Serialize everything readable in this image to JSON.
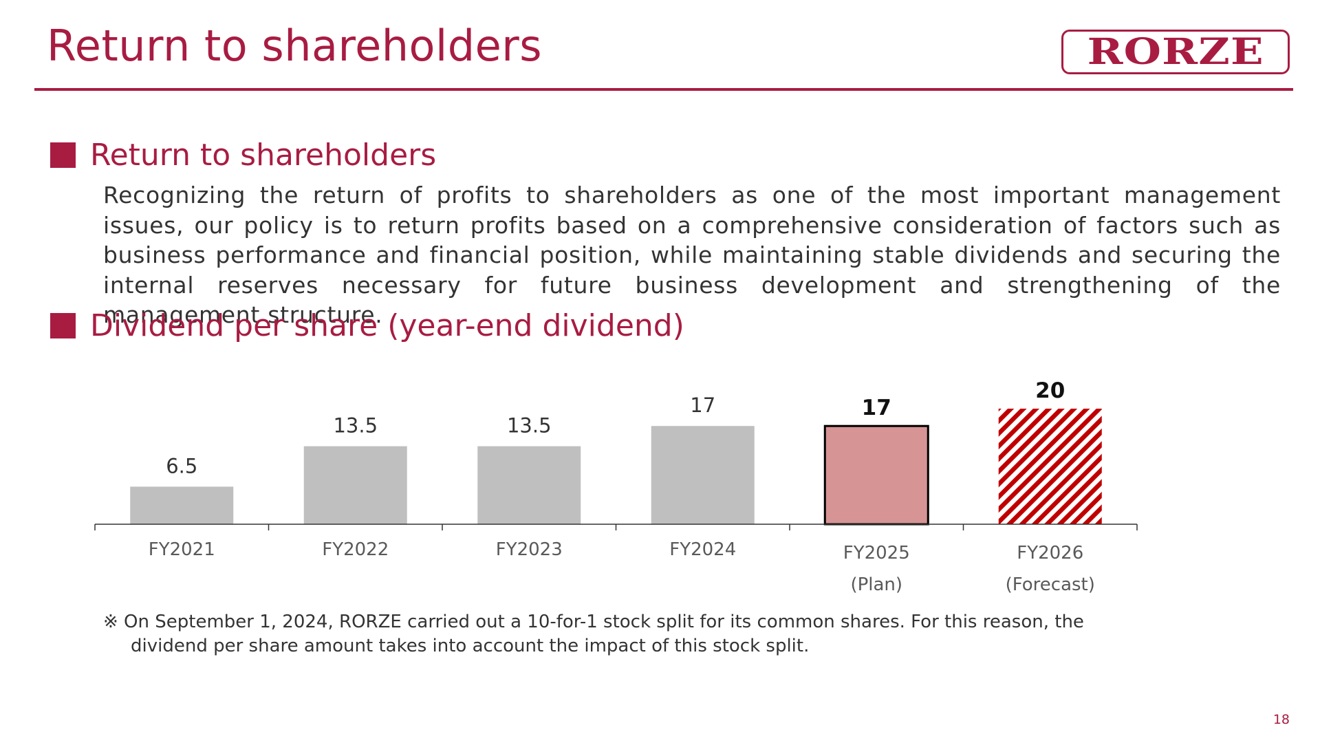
{
  "page_title": "Return to shareholders",
  "logo_text": "RORZE",
  "sections": [
    {
      "heading": "Return to shareholders"
    },
    {
      "heading": "Dividend per share (year-end dividend)"
    }
  ],
  "policy_text": "Recognizing the return of profits to shareholders as one of the most important management issues, our policy is to return profits based on a comprehensive consideration of factors such as business performance and financial position, while maintaining stable dividends and securing the internal reserves necessary for future business development and strengthening of the management structure.",
  "footnote": {
    "line1": "※ On September 1, 2024, RORZE carried out a 10-for-1 stock split for its common shares. For this reason, the",
    "line2": "dividend per share amount takes into account the impact of this stock split."
  },
  "page_number": "18",
  "colors": {
    "brand": "#a81c42",
    "bar_actual": "#bfbfbf",
    "bar_plan": "#d69494",
    "bar_forecast_hatch": "#c00000"
  },
  "chart_data": {
    "type": "bar",
    "categories": [
      "FY2021",
      "FY2022",
      "FY2023",
      "FY2024",
      "FY2025",
      "FY2026"
    ],
    "category_sublabels": [
      "",
      "",
      "",
      "",
      "(Plan)",
      "(Forecast)"
    ],
    "values": [
      6.5,
      13.5,
      13.5,
      17,
      17,
      20
    ],
    "value_labels": [
      "6.5",
      "13.5",
      "13.5",
      "17",
      "17",
      "20"
    ],
    "bar_styles": [
      "actual",
      "actual",
      "actual",
      "actual",
      "plan",
      "forecast"
    ],
    "title": "",
    "xlabel": "",
    "ylabel": "",
    "ylim": [
      0,
      20
    ],
    "grid": false,
    "legend": "none"
  }
}
